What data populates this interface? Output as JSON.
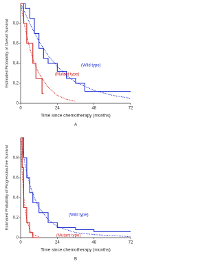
{
  "chart_data": [
    {
      "type": "line",
      "panel": "A",
      "y_label": "Estimated Probability of Overall Survival",
      "x_label": "Time since chemotherapy (months)",
      "xlim": [
        0,
        72
      ],
      "ylim": [
        0,
        1
      ],
      "xticks": [
        0,
        24,
        48,
        72
      ],
      "yticks": [
        0,
        0.2,
        0.4,
        0.6,
        0.8
      ],
      "series": [
        {
          "name": "(Wild type)",
          "color": "#1f2fd0",
          "style": "solid",
          "x": [
            0,
            3,
            3,
            6,
            6,
            9,
            9,
            12,
            12,
            15,
            15,
            18,
            18,
            24,
            24,
            30,
            30,
            36,
            36,
            42,
            42,
            72
          ],
          "values": [
            1,
            1,
            0.95,
            0.95,
            0.85,
            0.85,
            0.7,
            0.7,
            0.55,
            0.55,
            0.45,
            0.45,
            0.4,
            0.4,
            0.32,
            0.32,
            0.25,
            0.25,
            0.2,
            0.2,
            0.12,
            0.12
          ]
        },
        {
          "color": "#1f2fd0",
          "style": "dotted",
          "x": [
            0,
            6,
            12,
            18,
            24,
            30,
            36,
            48,
            60,
            72
          ],
          "values": [
            1,
            0.8,
            0.62,
            0.48,
            0.37,
            0.28,
            0.21,
            0.13,
            0.08,
            0.05
          ]
        },
        {
          "name": "(Mutant type)",
          "color": "#d01f1f",
          "style": "solid",
          "x": [
            0,
            2,
            2,
            4,
            4,
            8,
            8,
            10,
            10,
            14,
            14,
            15
          ],
          "values": [
            1,
            1,
            0.8,
            0.8,
            0.6,
            0.6,
            0.4,
            0.4,
            0.25,
            0.25,
            0.1,
            0.1
          ]
        },
        {
          "color": "#d01f1f",
          "style": "dotted",
          "x": [
            0,
            3,
            6,
            9,
            12,
            18,
            24,
            30,
            36
          ],
          "values": [
            1,
            0.75,
            0.55,
            0.4,
            0.3,
            0.16,
            0.08,
            0.04,
            0.02
          ]
        }
      ]
    },
    {
      "type": "line",
      "panel": "B",
      "y_label": "Estimated Probability of Progression-free Survival",
      "x_label": "Time since chemotherapy (months)",
      "xlim": [
        0,
        72
      ],
      "ylim": [
        0,
        1
      ],
      "xticks": [
        0,
        24,
        48,
        72
      ],
      "yticks": [
        0,
        0.2,
        0.4,
        0.6,
        0.8
      ],
      "series": [
        {
          "name": "(Wild type)",
          "color": "#1f2fd0",
          "style": "solid",
          "x": [
            0,
            2,
            2,
            4,
            4,
            6,
            6,
            8,
            8,
            12,
            12,
            18,
            18,
            24,
            24,
            36,
            36,
            48,
            48,
            72
          ],
          "values": [
            1,
            1,
            0.8,
            0.8,
            0.6,
            0.6,
            0.45,
            0.45,
            0.35,
            0.35,
            0.25,
            0.25,
            0.15,
            0.15,
            0.1,
            0.1,
            0.08,
            0.08,
            0.06,
            0.06
          ]
        },
        {
          "color": "#1f2fd0",
          "style": "dotted",
          "x": [
            0,
            3,
            6,
            9,
            12,
            18,
            24,
            36,
            48,
            60,
            72
          ],
          "values": [
            1,
            0.72,
            0.53,
            0.4,
            0.3,
            0.18,
            0.11,
            0.05,
            0.03,
            0.02,
            0.01
          ]
        },
        {
          "name": "(Mutant type)",
          "color": "#d01f1f",
          "style": "solid",
          "x": [
            0,
            1,
            1,
            2,
            2,
            4,
            4,
            6,
            6,
            8,
            8,
            12
          ],
          "values": [
            1,
            1,
            0.7,
            0.7,
            0.3,
            0.3,
            0.15,
            0.15,
            0.05,
            0.05,
            0,
            0
          ]
        },
        {
          "color": "#d01f1f",
          "style": "dotted",
          "x": [
            0,
            1,
            2,
            3,
            4,
            6,
            8,
            12
          ],
          "values": [
            1,
            0.65,
            0.42,
            0.28,
            0.18,
            0.08,
            0.03,
            0.01
          ]
        }
      ]
    }
  ]
}
